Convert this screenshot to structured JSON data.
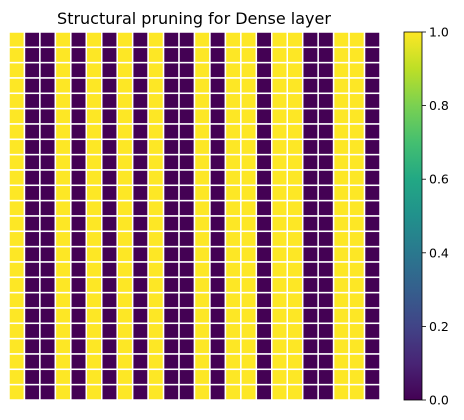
{
  "chart_data": {
    "type": "heatmap",
    "title": "Structural pruning for Dense layer",
    "xlabel": "",
    "ylabel": "",
    "rows": 24,
    "columns": 24,
    "column_values": [
      1,
      0,
      0,
      1,
      0,
      1,
      0,
      1,
      0,
      1,
      0,
      0,
      1,
      0,
      1,
      1,
      0,
      1,
      1,
      0,
      0,
      1,
      1,
      0
    ],
    "cell_separators": "white",
    "axes_visible": false,
    "colorbar": {
      "colormap": "viridis",
      "range": [
        0.0,
        1.0
      ],
      "ticks": [
        0.0,
        0.2,
        0.4,
        0.6,
        0.8,
        1.0
      ],
      "tick_labels": [
        "0.0",
        "0.2",
        "0.4",
        "0.6",
        "0.8",
        "1.0"
      ],
      "placement": "right"
    },
    "colors": {
      "zero": "#440154",
      "one": "#fde725",
      "separator": "#ffffff"
    }
  }
}
